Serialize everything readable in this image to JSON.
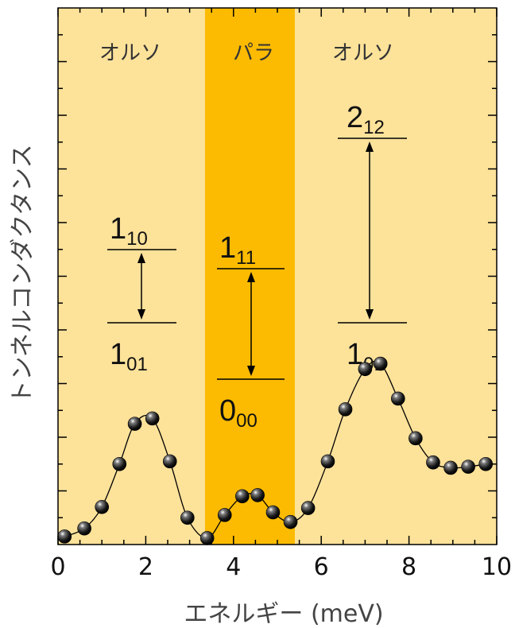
{
  "chart_data": {
    "type": "scatter",
    "xlabel": "エネルギー (meV)",
    "ylabel": "トンネルコンダクタンス",
    "xlim": [
      0,
      10
    ],
    "ylim": [
      0,
      1
    ],
    "xticks": [
      "0",
      "2",
      "4",
      "6",
      "8",
      "10"
    ],
    "x": [
      0.15,
      0.6,
      1.0,
      1.4,
      1.75,
      2.15,
      2.55,
      2.95,
      3.4,
      3.8,
      4.2,
      4.55,
      4.9,
      5.3,
      5.7,
      6.15,
      6.55,
      7.0,
      7.35,
      7.75,
      8.15,
      8.55,
      8.95,
      9.35,
      9.75
    ],
    "y": [
      0.015,
      0.03,
      0.07,
      0.15,
      0.225,
      0.235,
      0.155,
      0.05,
      0.012,
      0.055,
      0.09,
      0.092,
      0.06,
      0.042,
      0.068,
      0.155,
      0.252,
      0.327,
      0.337,
      0.272,
      0.198,
      0.153,
      0.143,
      0.145,
      0.15
    ],
    "regions": [
      {
        "label": "オルソ",
        "x_range": [
          0,
          3.35
        ],
        "color": "#fde29a"
      },
      {
        "label": "パラ",
        "x_range": [
          3.35,
          5.4
        ],
        "color": "#fcbb00"
      },
      {
        "label": "オルソ",
        "x_range": [
          5.4,
          10
        ],
        "color": "#fde29a"
      }
    ],
    "annotations": [
      {
        "upper": {
          "main": "1",
          "sub": "10"
        },
        "lower": {
          "main": "1",
          "sub": "01"
        }
      },
      {
        "upper": {
          "main": "1",
          "sub": "11"
        },
        "lower": {
          "main": "0",
          "sub": "00"
        }
      },
      {
        "upper": {
          "main": "2",
          "sub": "12"
        },
        "lower": {
          "main": "1",
          "sub": "01"
        }
      }
    ],
    "marker_color": "#1a1a1a",
    "line_color": "#000000"
  }
}
